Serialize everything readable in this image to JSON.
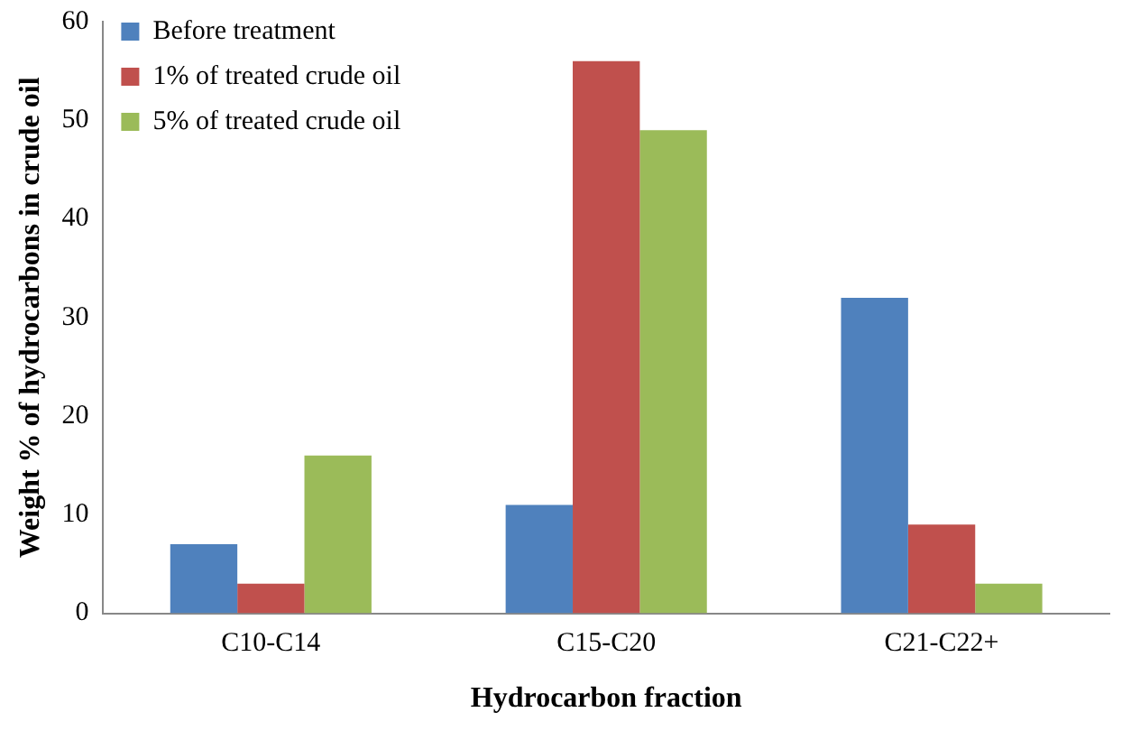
{
  "chart_data": {
    "type": "bar",
    "xlabel": "Hydrocarbon fraction",
    "ylabel": "Weight % of hydrocarbons in crude oil",
    "categories": [
      "C10-C14",
      "C15-C20",
      "C21-C22+"
    ],
    "series": [
      {
        "name": "Before treatment",
        "color": "#4f81bd",
        "values": [
          7,
          11,
          32
        ]
      },
      {
        "name": "1% of treated crude oil",
        "color": "#c0504d",
        "values": [
          3,
          56,
          9
        ]
      },
      {
        "name": "5% of treated crude oil",
        "color": "#9bbb59",
        "values": [
          16,
          49,
          3
        ]
      }
    ],
    "ylim": [
      0,
      60
    ],
    "yticks": [
      0,
      10,
      20,
      30,
      40,
      50,
      60
    ],
    "grid": false,
    "legend": "top left"
  }
}
